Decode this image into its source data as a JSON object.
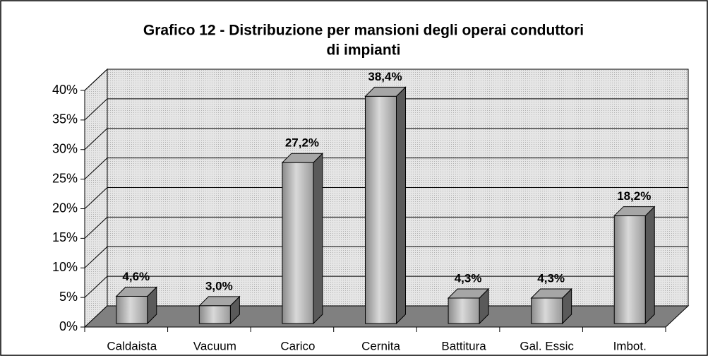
{
  "chart_data": {
    "type": "bar3d",
    "title": [
      "Grafico 12 - Distribuzione per mansioni degli operai conduttori",
      "di impianti"
    ],
    "categories": [
      "Caldaista",
      "Vacuum",
      "Carico",
      "Cernita",
      "Battitura",
      "Gal. Essic",
      "Imbot."
    ],
    "values": [
      4.6,
      3.0,
      27.2,
      38.4,
      4.3,
      4.3,
      18.2
    ],
    "value_labels": [
      "4,6%",
      "3,0%",
      "27,2%",
      "38,4%",
      "4,3%",
      "4,3%",
      "18,2%"
    ],
    "color": "#a6a6a6",
    "ylim": [
      0,
      40
    ],
    "yticks": [
      {
        "value": 0,
        "label": "0%"
      },
      {
        "value": 5,
        "label": "5%"
      },
      {
        "value": 10,
        "label": "10%"
      },
      {
        "value": 15,
        "label": "15%"
      },
      {
        "value": 20,
        "label": "20%"
      },
      {
        "value": 25,
        "label": "25%"
      },
      {
        "value": 30,
        "label": "30%"
      },
      {
        "value": 35,
        "label": "35%"
      },
      {
        "value": 40,
        "label": "40%"
      }
    ],
    "grid": true
  }
}
